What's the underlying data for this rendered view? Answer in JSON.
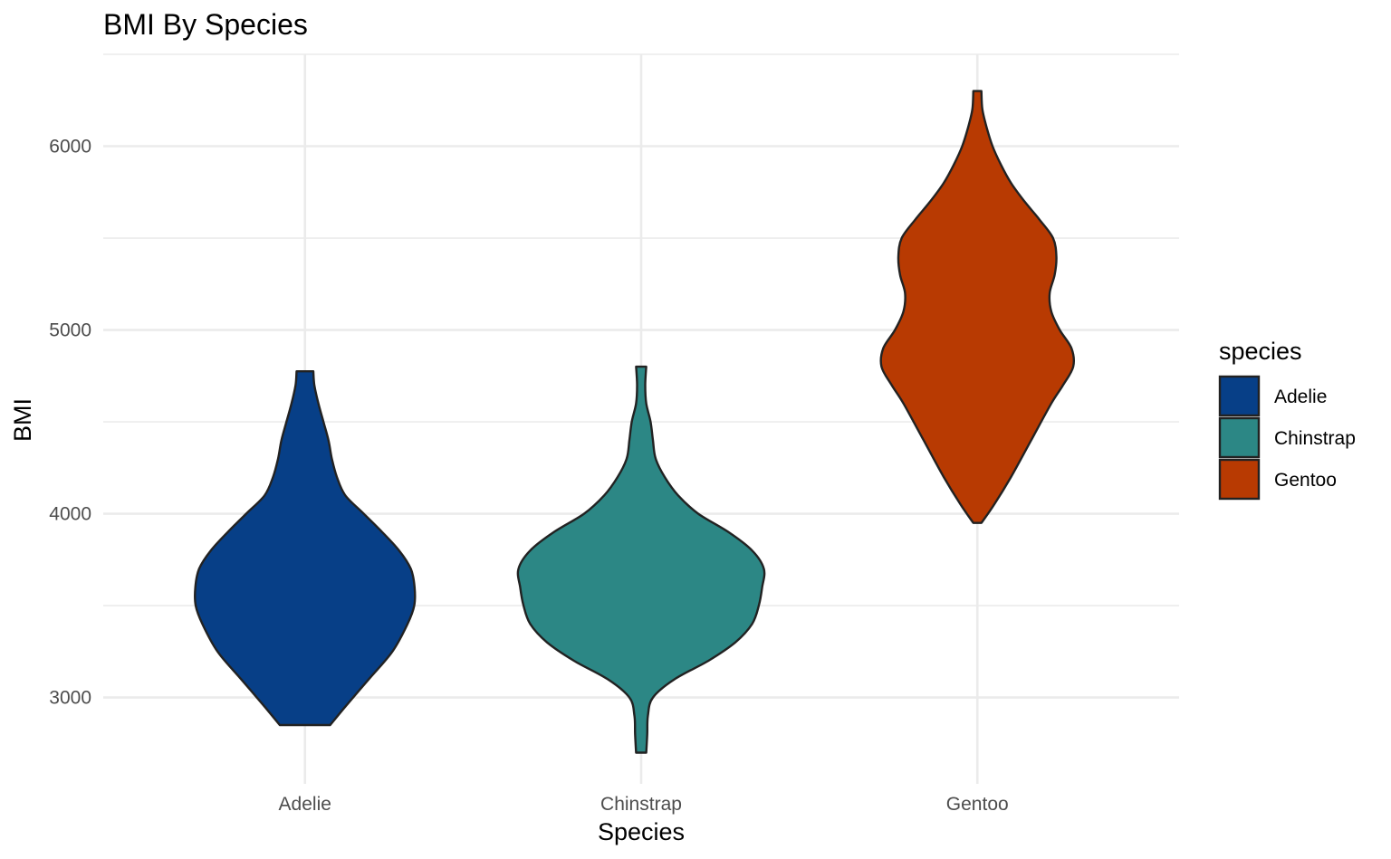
{
  "chart_data": {
    "type": "violin",
    "title": "BMI By Species",
    "xlabel": "Species",
    "ylabel": "BMI",
    "categories": [
      "Adelie",
      "Chinstrap",
      "Gentoo"
    ],
    "ylim": [
      2530,
      6500
    ],
    "yticks": [
      3000,
      4000,
      5000,
      6000
    ],
    "grid": true,
    "legend": {
      "title": "species",
      "position": "right",
      "entries": [
        "Adelie",
        "Chinstrap",
        "Gentoo"
      ]
    },
    "colors": {
      "Adelie": "#073f87",
      "Chinstrap": "#2c8785",
      "Gentoo": "#b83a02"
    },
    "max_half_width_units": 0.33,
    "series": [
      {
        "name": "Adelie",
        "profile": [
          [
            2850,
            0.075
          ],
          [
            2950,
            0.12
          ],
          [
            3100,
            0.19
          ],
          [
            3250,
            0.26
          ],
          [
            3400,
            0.305
          ],
          [
            3500,
            0.325
          ],
          [
            3600,
            0.326
          ],
          [
            3700,
            0.315
          ],
          [
            3800,
            0.28
          ],
          [
            3900,
            0.23
          ],
          [
            4000,
            0.175
          ],
          [
            4100,
            0.12
          ],
          [
            4200,
            0.095
          ],
          [
            4300,
            0.08
          ],
          [
            4400,
            0.07
          ],
          [
            4500,
            0.055
          ],
          [
            4600,
            0.04
          ],
          [
            4700,
            0.028
          ],
          [
            4775,
            0.025
          ]
        ]
      },
      {
        "name": "Chinstrap",
        "profile": [
          [
            2700,
            0.015
          ],
          [
            2800,
            0.018
          ],
          [
            2900,
            0.02
          ],
          [
            3000,
            0.035
          ],
          [
            3100,
            0.1
          ],
          [
            3200,
            0.2
          ],
          [
            3300,
            0.28
          ],
          [
            3400,
            0.33
          ],
          [
            3500,
            0.35
          ],
          [
            3600,
            0.36
          ],
          [
            3700,
            0.365
          ],
          [
            3800,
            0.33
          ],
          [
            3900,
            0.26
          ],
          [
            4000,
            0.17
          ],
          [
            4100,
            0.11
          ],
          [
            4200,
            0.07
          ],
          [
            4300,
            0.043
          ],
          [
            4400,
            0.035
          ],
          [
            4500,
            0.028
          ],
          [
            4600,
            0.015
          ],
          [
            4700,
            0.012
          ],
          [
            4800,
            0.015
          ]
        ]
      },
      {
        "name": "Gentoo",
        "profile": [
          [
            3950,
            0.012
          ],
          [
            4050,
            0.05
          ],
          [
            4200,
            0.1
          ],
          [
            4400,
            0.16
          ],
          [
            4600,
            0.22
          ],
          [
            4700,
            0.255
          ],
          [
            4800,
            0.285
          ],
          [
            4900,
            0.28
          ],
          [
            5000,
            0.245
          ],
          [
            5100,
            0.22
          ],
          [
            5200,
            0.215
          ],
          [
            5300,
            0.23
          ],
          [
            5400,
            0.235
          ],
          [
            5500,
            0.225
          ],
          [
            5600,
            0.185
          ],
          [
            5700,
            0.14
          ],
          [
            5800,
            0.1
          ],
          [
            5900,
            0.07
          ],
          [
            6000,
            0.045
          ],
          [
            6100,
            0.028
          ],
          [
            6200,
            0.015
          ],
          [
            6300,
            0.012
          ]
        ]
      }
    ]
  }
}
